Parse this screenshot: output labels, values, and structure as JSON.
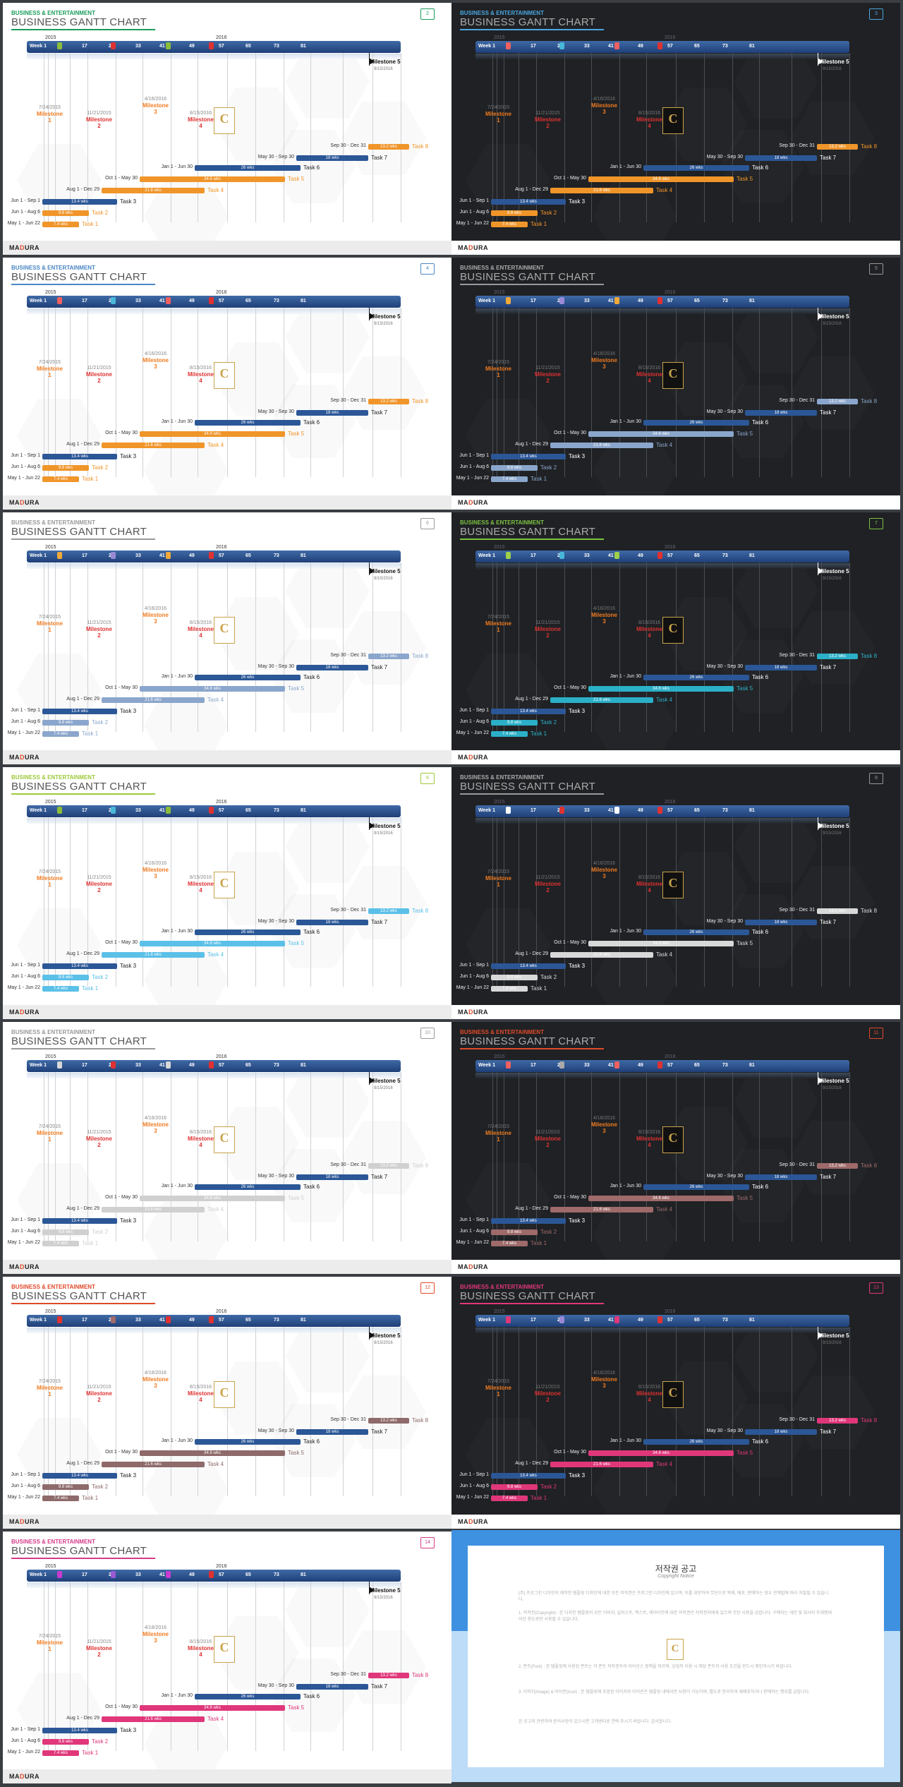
{
  "subtitle": "BUSINESS & ENTERTAINMENT",
  "title": "BUSINESS GANTT CHART",
  "years": [
    "2015",
    "2016"
  ],
  "weeks": [
    "Week 1",
    "9",
    "17",
    "25",
    "33",
    "41",
    "49",
    "57",
    "65",
    "73",
    "81"
  ],
  "milestones": [
    {
      "date": "7/24/2015",
      "name": "Milestone",
      "num": "1"
    },
    {
      "date": "11/21/2015",
      "name": "Milestone",
      "num": "2"
    },
    {
      "date": "4/16/2016",
      "name": "Milestone",
      "num": "3"
    },
    {
      "date": "8/15/2016",
      "name": "Milestone",
      "num": "4"
    }
  ],
  "milestone5": {
    "name": "Milestone 5",
    "date": "9/15/2016"
  },
  "logo_letter": "C",
  "tasks": [
    {
      "name": "Task 8",
      "range": "Sep 30 - Dec 31",
      "dur": "13.2 wks",
      "progress": 1
    },
    {
      "name": "Task 7",
      "range": "May 30 - Sep 30",
      "dur": "18 wks",
      "progress": 1
    },
    {
      "name": "Task 6",
      "range": "Jan 1 - Jun 30",
      "dur": "26 wks",
      "progress": 1
    },
    {
      "name": "Task 5",
      "range": "Oct 1 - May 30",
      "dur": "34.6 wks",
      "progress": 1
    },
    {
      "name": "Task 4",
      "range": "Aug 1 - Dec 29",
      "dur": "21.6 wks",
      "progress": 1
    },
    {
      "name": "Task 3",
      "range": "Jun 1 - Sep 1",
      "dur": "13.4 wks",
      "progress": 1
    },
    {
      "name": "Task 2",
      "range": "Jun 1 - Aug 6",
      "dur": "9.8 wks",
      "progress": 1
    },
    {
      "name": "Task 1",
      "range": "May 1 - Jun 22",
      "dur": "7.4 wks",
      "progress": 1
    }
  ],
  "brand": {
    "ma": "MA",
    "d": "D",
    "ura": "URA"
  },
  "slides": [
    {
      "num": "2",
      "theme": "light",
      "accent": "#1a9c5b",
      "sub": "#1a9c5b",
      "m": [
        "#8bbd3a",
        "#e03131",
        "#8bbd3a",
        "#e03131"
      ],
      "hi": "#f0952a"
    },
    {
      "num": "3",
      "theme": "dark",
      "accent": "#4aa6e0",
      "sub": "#4aa6e0",
      "m": [
        "#f06060",
        "#48b7d8",
        "#f06060",
        "#e03131"
      ],
      "hi": "#f0952a"
    },
    {
      "num": "4",
      "theme": "light",
      "accent": "#4a87c5",
      "sub": "#4a87c5",
      "m": [
        "#f06060",
        "#48b7d8",
        "#f06060",
        "#e03131"
      ],
      "hi": "#f0952a"
    },
    {
      "num": "5",
      "theme": "dark",
      "accent": "#999999",
      "sub": "#aaaaaa",
      "m": [
        "#f0a93a",
        "#9a8ad6",
        "#f0a93a",
        "#e03131"
      ],
      "hi": "#8ba6cc"
    },
    {
      "num": "6",
      "theme": "light",
      "accent": "#999999",
      "sub": "#999999",
      "m": [
        "#f0a93a",
        "#9a8ad6",
        "#f0a93a",
        "#e03131"
      ],
      "hi": "#8ba6cc"
    },
    {
      "num": "7",
      "theme": "dark",
      "accent": "#7dc242",
      "sub": "#7dc242",
      "m": [
        "#9ed04a",
        "#48b7d8",
        "#9ed04a",
        "#e03131"
      ],
      "hi": "#2bb0c8"
    },
    {
      "num": "8",
      "theme": "light",
      "accent": "#9ec93a",
      "sub": "#9ec93a",
      "m": [
        "#8bbd3a",
        "#48b7d8",
        "#8bbd3a",
        "#e03131"
      ],
      "hi": "#5bc0e8"
    },
    {
      "num": "9",
      "theme": "dark",
      "accent": "#999999",
      "sub": "#aaaaaa",
      "m": [
        "#ffffff",
        "#e03131",
        "#ffffff",
        "#e03131"
      ],
      "hi": "#d8d8d8"
    },
    {
      "num": "10",
      "theme": "light",
      "accent": "#999999",
      "sub": "#999999",
      "m": [
        "#d8d8d8",
        "#e03131",
        "#d8d8d8",
        "#e03131"
      ],
      "hi": "#d0d0d0"
    },
    {
      "num": "11",
      "theme": "dark",
      "accent": "#e04a2a",
      "sub": "#e04a2a",
      "m": [
        "#f06060",
        "#aaaaaa",
        "#f06060",
        "#e03131"
      ],
      "hi": "#9e6a6a"
    },
    {
      "num": "12",
      "theme": "light",
      "accent": "#e04a2a",
      "sub": "#e04a2a",
      "m": [
        "#e03131",
        "#9e6a6a",
        "#e03131",
        "#e03131"
      ],
      "hi": "#8e6a6a"
    },
    {
      "num": "13",
      "theme": "dark",
      "accent": "#e0377a",
      "sub": "#e0377a",
      "m": [
        "#e0377a",
        "#9a8ad6",
        "#e0377a",
        "#e03131"
      ],
      "hi": "#e0377a"
    },
    {
      "num": "14",
      "theme": "light",
      "accent": "#d63a8a",
      "sub": "#d63a8a",
      "m": [
        "#c93ad0",
        "#9a5ad6",
        "#c93ad0",
        "#e03131"
      ],
      "hi": "#e0377a"
    }
  ],
  "copyright": {
    "heading": "저작권 공고",
    "sub": "Copyright Notice",
    "logo_letter": "C",
    "paragraphs": [
      "(주) 프로그린 디자인이 제작한 템플릿 디자인에 대한 모든 저작권은 프로그린 디자인에 있으며, 이를 위반하여 무단으로 복제, 배포, 판매하는 경우 관계법에 따라 처벌될 수 있습니다.",
      "1. 저작권(Copyright) : 본 디자인 템플릿의 모든 이미지, 일러스트, 텍스트, 레이아웃에 대한 저작권은 저작권자에게 있으며 무단 사용을 금합니다. 구매자는 개인 및 회사의 프레젠테이션 용도로만 사용할 수 있습니다.",
      "2. 폰트(Font) : 본 템플릿에 사용된 폰트는 각 폰트 저작권자의 라이선스 정책을 따르며, 상업적 이용 시 해당 폰트의 사용 조건을 반드시 확인하시기 바랍니다.",
      "3. 이미지(Image) & 아이콘(Icon) : 본 템플릿에 포함된 이미지와 아이콘은 템플릿 내에서만 사용이 가능하며, 별도로 분리하여 재배포하거나 판매하는 행위를 금합니다.",
      "본 공고와 관련하여 문의사항이 있으시면 고객센터로 연락 주시기 바랍니다. 감사합니다."
    ]
  }
}
